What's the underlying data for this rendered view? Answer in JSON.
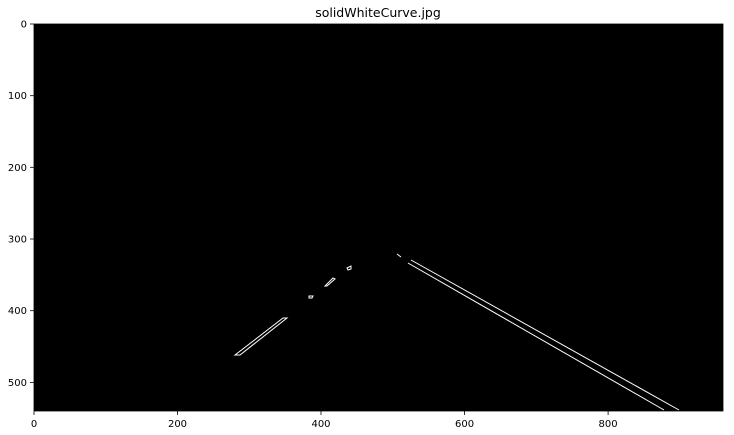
{
  "figure": {
    "title": "solidWhiteCurve.jpg",
    "x_ticks": [
      "0",
      "200",
      "400",
      "600",
      "800"
    ],
    "y_ticks": [
      "0",
      "100",
      "200",
      "300",
      "400",
      "500"
    ],
    "image_size": {
      "width": 960,
      "height": 540
    },
    "background_color": "#000000",
    "edge_color": "#ffffff"
  }
}
